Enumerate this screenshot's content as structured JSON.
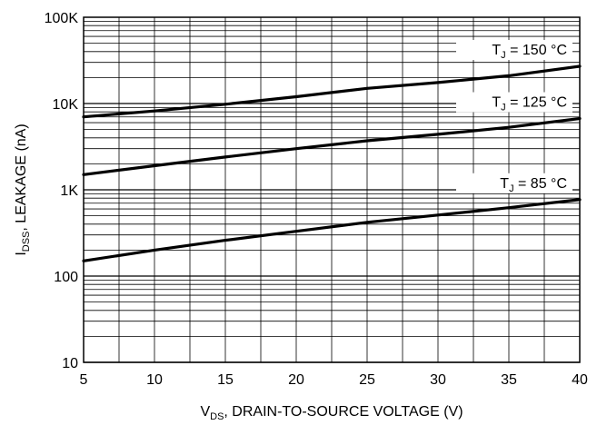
{
  "chart_data": {
    "type": "line",
    "xlabel": "V",
    "xlabel_sub": "DS",
    "xlabel_rest": ", DRAIN-TO-SOURCE VOLTAGE (V)",
    "ylabel": "I",
    "ylabel_sub": "DSS",
    "ylabel_rest": ", LEAKAGE (nA)",
    "xlim": [
      5,
      40
    ],
    "ylim": [
      10,
      100000
    ],
    "y_scale": "log",
    "grid": true,
    "x_ticks": [
      5,
      10,
      15,
      20,
      25,
      30,
      35,
      40
    ],
    "x_tick_labels": [
      "5",
      "10",
      "15",
      "20",
      "25",
      "30",
      "35",
      "40"
    ],
    "y_ticks": [
      10,
      100,
      1000,
      10000,
      100000
    ],
    "y_tick_labels": [
      "10",
      "100",
      "1K",
      "10K",
      "100K"
    ],
    "series": [
      {
        "name": "T",
        "name_sub": "J",
        "name_rest": " = 150 °C",
        "x": [
          5,
          10,
          15,
          20,
          25,
          30,
          35,
          40
        ],
        "y": [
          7000,
          8200,
          9800,
          12000,
          15000,
          17500,
          21000,
          27000
        ]
      },
      {
        "name": "T",
        "name_sub": "J",
        "name_rest": " = 125 °C",
        "x": [
          5,
          10,
          15,
          20,
          25,
          30,
          35,
          40
        ],
        "y": [
          1500,
          1900,
          2400,
          3000,
          3700,
          4400,
          5300,
          6700
        ]
      },
      {
        "name": "T",
        "name_sub": "J",
        "name_rest": " = 85 °C",
        "x": [
          5,
          10,
          15,
          20,
          25,
          30,
          35,
          40
        ],
        "y": [
          150,
          200,
          260,
          330,
          420,
          510,
          620,
          770
        ]
      }
    ]
  }
}
